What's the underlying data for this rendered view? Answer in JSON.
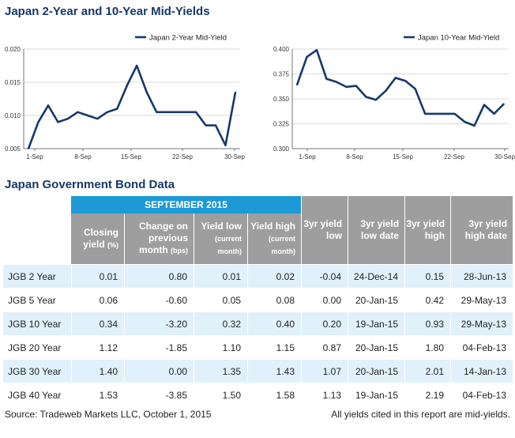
{
  "chart_title": "Japan 2-Year and 10-Year Mid-Yields",
  "chart_data": [
    {
      "type": "line",
      "x_ticks": [
        "1-Sep",
        "8-Sep",
        "15-Sep",
        "22-Sep",
        "30-Sep"
      ],
      "y_ticks": [
        "0.020",
        "0.015",
        "0.010",
        "0.005"
      ],
      "ylim": [
        0.005,
        0.02
      ],
      "legend_position": "top-right",
      "grid": true,
      "series": [
        {
          "name": "Japan 2-Year Mid-Yield",
          "color": "#17386b",
          "x": [
            0,
            1,
            2,
            3,
            4,
            5,
            6,
            7,
            8,
            9,
            10,
            11,
            12,
            13,
            14,
            15,
            16,
            17,
            18,
            19,
            20,
            21
          ],
          "values": [
            0.005,
            0.009,
            0.0115,
            0.009,
            0.0095,
            0.0105,
            0.01,
            0.0095,
            0.0105,
            0.011,
            0.0145,
            0.0175,
            0.0135,
            0.0105,
            0.0105,
            0.0105,
            0.0105,
            0.0105,
            0.0085,
            0.0085,
            0.0055,
            0.0135
          ]
        }
      ]
    },
    {
      "type": "line",
      "x_ticks": [
        "1-Sep",
        "8-Sep",
        "15-Sep",
        "22-Sep",
        "30-Sep"
      ],
      "y_ticks": [
        "0.400",
        "0.375",
        "0.350",
        "0.325",
        "0.300"
      ],
      "ylim": [
        0.3,
        0.4
      ],
      "legend_position": "top-right",
      "grid": true,
      "series": [
        {
          "name": "Japan 10-Year Mid-Yield",
          "color": "#17386b",
          "x": [
            0,
            1,
            2,
            3,
            4,
            5,
            6,
            7,
            8,
            9,
            10,
            11,
            12,
            13,
            14,
            15,
            16,
            17,
            18,
            19,
            20,
            21
          ],
          "values": [
            0.364,
            0.392,
            0.399,
            0.37,
            0.367,
            0.362,
            0.363,
            0.352,
            0.349,
            0.358,
            0.371,
            0.368,
            0.36,
            0.335,
            0.335,
            0.335,
            0.335,
            0.327,
            0.323,
            0.344,
            0.335,
            0.345
          ]
        }
      ]
    }
  ],
  "table_title": "Japan Government Bond Data",
  "table": {
    "group_header": "SEPTEMBER 2015",
    "headers": [
      {
        "main": "Closing yield",
        "sub": "(%)"
      },
      {
        "main": "Change on previous month",
        "sub": "(bps)"
      },
      {
        "main": "Yield low",
        "sub": "(current month)"
      },
      {
        "main": "Yield high",
        "sub": "(current month)"
      },
      {
        "main": "3yr yield low",
        "sub": ""
      },
      {
        "main": "3yr yield low date",
        "sub": ""
      },
      {
        "main": "3yr yield high",
        "sub": ""
      },
      {
        "main": "3yr yield high date",
        "sub": ""
      }
    ],
    "rows": [
      [
        "JGB 2 Year",
        "0.01",
        "0.80",
        "0.01",
        "0.02",
        "-0.04",
        "24-Dec-14",
        "0.15",
        "28-Jun-13"
      ],
      [
        "JGB 5 Year",
        "0.06",
        "-0.60",
        "0.05",
        "0.08",
        "0.00",
        "20-Jan-15",
        "0.42",
        "29-May-13"
      ],
      [
        "JGB 10 Year",
        "0.34",
        "-3.20",
        "0.32",
        "0.40",
        "0.20",
        "19-Jan-15",
        "0.93",
        "29-May-13"
      ],
      [
        "JGB 20 Year",
        "1.12",
        "-1.85",
        "1.10",
        "1.15",
        "0.87",
        "20-Jan-15",
        "1.80",
        "04-Feb-13"
      ],
      [
        "JGB 30 Year",
        "1.40",
        "0.00",
        "1.35",
        "1.43",
        "1.07",
        "20-Jan-15",
        "2.01",
        "14-Jan-13"
      ],
      [
        "JGB 40 Year",
        "1.53",
        "-3.85",
        "1.50",
        "1.58",
        "1.13",
        "19-Jan-15",
        "2.19",
        "04-Feb-13"
      ]
    ]
  },
  "footer": {
    "source": "Source: Tradeweb Markets LLC, October 1, 2015",
    "note": "All yields cited in this report are mid-yields."
  }
}
